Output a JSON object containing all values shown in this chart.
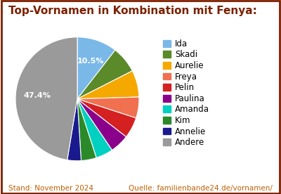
{
  "title": "Top-Vornamen in Kombination mit Fenya:",
  "labels": [
    "Ida",
    "Skadi",
    "Aurelie",
    "Freya",
    "Pelin",
    "Paulina",
    "Amanda",
    "Kim",
    "Annelie",
    "Andere"
  ],
  "values": [
    10.5,
    7.0,
    7.0,
    5.5,
    5.5,
    5.0,
    4.5,
    4.0,
    3.6,
    47.4
  ],
  "colors": [
    "#7ab8e8",
    "#5a8a2a",
    "#f5a800",
    "#f07050",
    "#d42020",
    "#8b008b",
    "#00d0c0",
    "#2a8a2a",
    "#1a1a8e",
    "#9a9a9a"
  ],
  "title_color": "#7b2000",
  "title_fontsize": 11,
  "footer_left": "Stand: November 2024",
  "footer_right": "Quelle: familienbande24.de/vornamen/",
  "footer_color": "#c06000",
  "footer_fontsize": 7.5,
  "background_color": "#ffffff",
  "border_color": "#7b2000",
  "legend_fontsize": 8.5
}
